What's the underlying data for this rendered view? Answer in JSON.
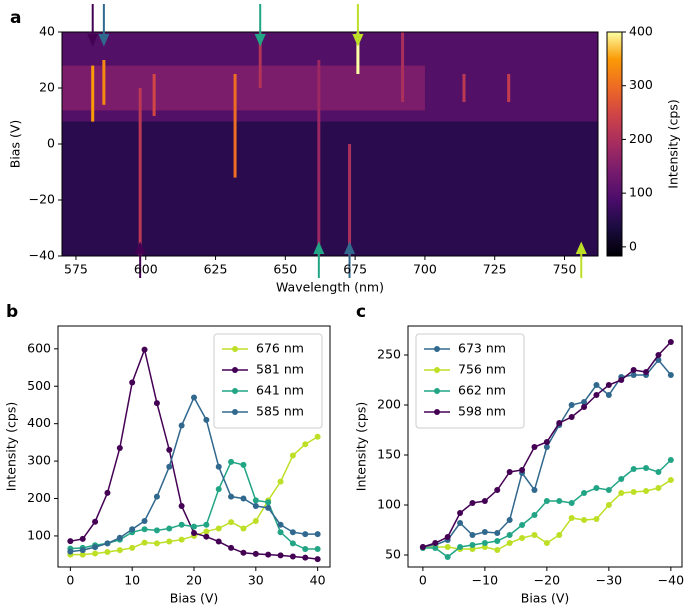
{
  "chart_data": [
    {
      "type": "heatmap",
      "panel_label": "a",
      "xlabel": "Wavelength (nm)",
      "ylabel": "Bias (V)",
      "xlim": [
        570,
        762
      ],
      "ylim": [
        -40,
        40
      ],
      "xticks": [
        575,
        600,
        625,
        650,
        675,
        700,
        725,
        750
      ],
      "yticks": [
        40,
        20,
        0,
        {
          "value": -20,
          "label": "−20"
        },
        {
          "value": -40,
          "label": "−40"
        }
      ],
      "colormap": "inferno",
      "clim": [
        -17,
        400
      ],
      "colorbar_label": "Intensity (cps)",
      "colorbar_ticks": [
        0,
        100,
        200,
        300,
        400
      ],
      "patches": [
        {
          "xlim": [
            570,
            762
          ],
          "ylim": [
            8,
            40
          ],
          "z": 105
        },
        {
          "xlim": [
            570,
            700
          ],
          "ylim": [
            12,
            28
          ],
          "z": 150
        },
        {
          "xlim": [
            570,
            762
          ],
          "ylim": [
            -40,
            8
          ],
          "z": 55
        }
      ],
      "streaks": [
        {
          "x": 581,
          "ylim": [
            8,
            28
          ],
          "z": 350
        },
        {
          "x": 585,
          "ylim": [
            14,
            30
          ],
          "z": 330
        },
        {
          "x": 598,
          "ylim": [
            -40,
            20
          ],
          "z": 220
        },
        {
          "x": 603,
          "ylim": [
            10,
            25
          ],
          "z": 250
        },
        {
          "x": 632,
          "ylim": [
            -12,
            25
          ],
          "z": 300
        },
        {
          "x": 641,
          "ylim": [
            20,
            40
          ],
          "z": 210
        },
        {
          "x": 662,
          "ylim": [
            -40,
            30
          ],
          "z": 180
        },
        {
          "x": 673,
          "ylim": [
            -40,
            0
          ],
          "z": 200
        },
        {
          "x": 676,
          "ylim": [
            25,
            40
          ],
          "z": 400
        },
        {
          "x": 692,
          "ylim": [
            15,
            40
          ],
          "z": 200
        },
        {
          "x": 714,
          "ylim": [
            15,
            25
          ],
          "z": 220
        },
        {
          "x": 730,
          "ylim": [
            15,
            25
          ],
          "z": 230
        }
      ],
      "arrows": [
        {
          "x": 581,
          "side": "top",
          "color": "#440154"
        },
        {
          "x": 585,
          "side": "top",
          "color": "#31688e"
        },
        {
          "x": 641,
          "side": "top",
          "color": "#21a585"
        },
        {
          "x": 676,
          "side": "top",
          "color": "#bddf26"
        },
        {
          "x": 598,
          "side": "bottom",
          "color": "#440154"
        },
        {
          "x": 662,
          "side": "bottom",
          "color": "#21a585"
        },
        {
          "x": 673,
          "side": "bottom",
          "color": "#31688e"
        },
        {
          "x": 756,
          "side": "bottom",
          "color": "#bddf26"
        }
      ]
    },
    {
      "type": "line",
      "panel_label": "b",
      "xlabel": "Bias (V)",
      "ylabel": "Intensity (cps)",
      "xlim": [
        -2,
        42
      ],
      "ylim": [
        17,
        661
      ],
      "xticks": [
        0,
        10,
        20,
        30,
        40
      ],
      "yticks": [
        100,
        200,
        300,
        400,
        500,
        600
      ],
      "legend": "upper right",
      "x": [
        0,
        2,
        4,
        6,
        8,
        10,
        12,
        14,
        16,
        18,
        20,
        22,
        24,
        26,
        28,
        30,
        32,
        34,
        36,
        38,
        40
      ],
      "series": [
        {
          "name": "676 nm",
          "color": "#bddf26",
          "values": [
            50,
            50,
            53,
            57,
            62,
            68,
            82,
            80,
            85,
            90,
            100,
            112,
            120,
            137,
            120,
            140,
            195,
            245,
            315,
            345,
            365
          ]
        },
        {
          "name": "581 nm",
          "color": "#440154",
          "values": [
            86,
            92,
            138,
            215,
            335,
            510,
            598,
            455,
            330,
            180,
            108,
            98,
            85,
            68,
            55,
            52,
            50,
            48,
            45,
            42,
            38
          ]
        },
        {
          "name": "641 nm",
          "color": "#21a585",
          "values": [
            66,
            68,
            75,
            80,
            90,
            110,
            118,
            115,
            120,
            130,
            125,
            130,
            225,
            298,
            290,
            195,
            190,
            110,
            80,
            65,
            65
          ]
        },
        {
          "name": "585 nm",
          "color": "#31688e",
          "values": [
            58,
            62,
            70,
            80,
            95,
            118,
            140,
            205,
            285,
            395,
            470,
            410,
            285,
            205,
            200,
            180,
            175,
            130,
            110,
            105,
            105
          ]
        }
      ]
    },
    {
      "type": "line",
      "panel_label": "c",
      "xlabel": "Bias (V)",
      "ylabel": "Intensity (cps)",
      "xlim": [
        2.4,
        -41.8
      ],
      "ylim": [
        38,
        279
      ],
      "xticks": [
        0,
        {
          "value": -10,
          "label": "−10"
        },
        {
          "value": -20,
          "label": "−20"
        },
        {
          "value": -30,
          "label": "−30"
        },
        {
          "value": -40,
          "label": "−40"
        }
      ],
      "yticks": [
        50,
        100,
        150,
        200,
        250
      ],
      "legend": "upper left",
      "x": [
        0,
        -2,
        -4,
        -6,
        -8,
        -10,
        -12,
        -14,
        -16,
        -18,
        -20,
        -22,
        -24,
        -26,
        -28,
        -30,
        -32,
        -34,
        -36,
        -38,
        -40
      ],
      "series": [
        {
          "name": "673 nm",
          "color": "#31688e",
          "values": [
            58,
            60,
            65,
            82,
            70,
            73,
            72,
            85,
            132,
            115,
            158,
            180,
            200,
            203,
            220,
            210,
            228,
            230,
            230,
            245,
            230
          ]
        },
        {
          "name": "756 nm",
          "color": "#bddf26",
          "values": [
            57,
            58,
            58,
            56,
            56,
            58,
            55,
            62,
            67,
            70,
            62,
            70,
            87,
            85,
            86,
            100,
            112,
            113,
            114,
            117,
            125
          ]
        },
        {
          "name": "662 nm",
          "color": "#21a585",
          "values": [
            57,
            57,
            48,
            58,
            60,
            62,
            64,
            70,
            80,
            90,
            104,
            104,
            102,
            112,
            117,
            115,
            126,
            136,
            137,
            133,
            145
          ]
        },
        {
          "name": "598 nm",
          "color": "#440154",
          "values": [
            58,
            62,
            68,
            92,
            102,
            104,
            115,
            133,
            135,
            158,
            163,
            182,
            188,
            198,
            210,
            220,
            225,
            235,
            233,
            250,
            263
          ]
        }
      ]
    }
  ]
}
